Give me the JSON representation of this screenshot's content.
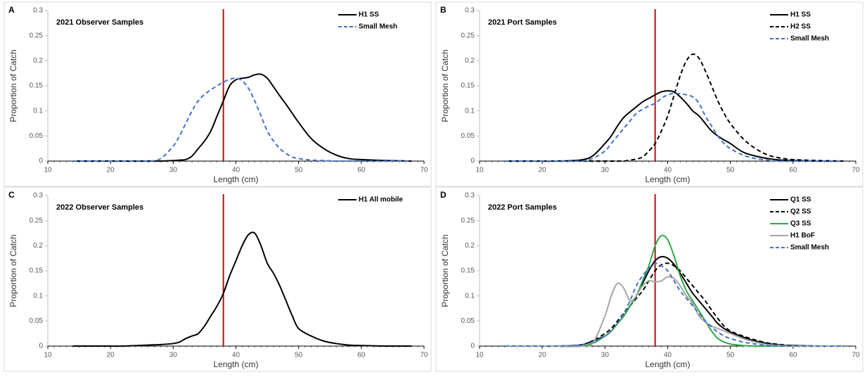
{
  "chart_data": [
    {
      "type": "line",
      "panel": "A",
      "title": "2021 Observer Samples",
      "xlabel": "Length (cm)",
      "ylabel": "Proportion of Catch",
      "x": [
        14,
        18,
        22,
        26,
        28,
        30,
        31,
        32,
        33,
        34,
        35,
        36,
        37,
        38,
        39,
        40,
        41,
        42,
        43,
        44,
        45,
        46,
        47,
        48,
        49,
        50,
        52,
        54,
        56,
        58,
        60,
        64,
        68
      ],
      "series": [
        {
          "name": "H1 SS",
          "color": "#000000",
          "dashed": false,
          "values": [
            0,
            0,
            0,
            0,
            0,
            0.001,
            0.002,
            0.003,
            0.01,
            0.025,
            0.04,
            0.06,
            0.09,
            0.12,
            0.15,
            0.162,
            0.165,
            0.167,
            0.172,
            0.173,
            0.165,
            0.148,
            0.13,
            0.113,
            0.095,
            0.077,
            0.045,
            0.025,
            0.012,
            0.005,
            0.003,
            0.001,
            0
          ]
        },
        {
          "name": "Small Mesh",
          "color": "#4472c4",
          "dashed": true,
          "values": [
            0,
            0,
            0,
            0,
            0.005,
            0.03,
            0.05,
            0.075,
            0.1,
            0.12,
            0.133,
            0.142,
            0.15,
            0.157,
            0.163,
            0.165,
            0.16,
            0.145,
            0.12,
            0.09,
            0.06,
            0.04,
            0.025,
            0.015,
            0.008,
            0.005,
            0.002,
            0.001,
            0,
            0,
            0,
            0,
            0
          ]
        }
      ],
      "xlim": [
        10,
        70
      ],
      "xticks": [
        10,
        20,
        30,
        40,
        50,
        60,
        70
      ],
      "ylim": [
        0,
        0.3
      ],
      "yticks": [
        0,
        0.05,
        0.1,
        0.15,
        0.2,
        0.25,
        0.3
      ],
      "ref_x": 38,
      "ref_color": "#e00000",
      "legend": "upper right"
    },
    {
      "type": "line",
      "panel": "B",
      "title": "2021 Port Samples",
      "xlabel": "Length (cm)",
      "ylabel": "Proportion of Catch",
      "x": [
        14,
        18,
        22,
        26,
        28,
        30,
        31,
        32,
        33,
        34,
        35,
        36,
        37,
        38,
        39,
        40,
        41,
        42,
        43,
        44,
        45,
        46,
        47,
        48,
        49,
        50,
        52,
        54,
        56,
        58,
        60,
        64,
        68
      ],
      "series": [
        {
          "name": "H1 SS",
          "color": "#000000",
          "dashed": false,
          "values": [
            0,
            0,
            0,
            0.002,
            0.01,
            0.035,
            0.05,
            0.07,
            0.087,
            0.098,
            0.108,
            0.118,
            0.125,
            0.132,
            0.138,
            0.14,
            0.138,
            0.128,
            0.115,
            0.1,
            0.09,
            0.075,
            0.06,
            0.05,
            0.042,
            0.035,
            0.018,
            0.01,
            0.005,
            0.002,
            0.001,
            0,
            0
          ]
        },
        {
          "name": "H2 SS",
          "color": "#000000",
          "dashed": true,
          "values": [
            0,
            0,
            0,
            0,
            0,
            0,
            0,
            0,
            0,
            0.002,
            0.004,
            0.008,
            0.02,
            0.035,
            0.06,
            0.09,
            0.13,
            0.17,
            0.2,
            0.213,
            0.205,
            0.18,
            0.15,
            0.12,
            0.095,
            0.075,
            0.045,
            0.025,
            0.012,
            0.006,
            0.003,
            0.001,
            0
          ]
        },
        {
          "name": "Small Mesh",
          "color": "#4472c4",
          "dashed": true,
          "values": [
            0,
            0,
            0,
            0,
            0.005,
            0.02,
            0.035,
            0.05,
            0.065,
            0.08,
            0.095,
            0.103,
            0.11,
            0.115,
            0.125,
            0.132,
            0.135,
            0.134,
            0.132,
            0.128,
            0.115,
            0.09,
            0.07,
            0.05,
            0.035,
            0.025,
            0.012,
            0.005,
            0.002,
            0,
            0,
            0,
            0
          ]
        }
      ],
      "xlim": [
        10,
        70
      ],
      "xticks": [
        10,
        20,
        30,
        40,
        50,
        60,
        70
      ],
      "ylim": [
        0,
        0.3
      ],
      "yticks": [
        0,
        0.05,
        0.1,
        0.15,
        0.2,
        0.25,
        0.3
      ],
      "ref_x": 38,
      "ref_color": "#e00000",
      "legend": "upper right"
    },
    {
      "type": "line",
      "panel": "C",
      "title": "2022 Observer Samples",
      "xlabel": "Length (cm)",
      "ylabel": "Proportion of Catch",
      "x": [
        14,
        18,
        22,
        26,
        28,
        30,
        31,
        32,
        33,
        34,
        35,
        36,
        37,
        38,
        39,
        40,
        41,
        42,
        43,
        44,
        45,
        46,
        47,
        48,
        49,
        50,
        52,
        54,
        56,
        58,
        60,
        64,
        68
      ],
      "series": [
        {
          "name": "H1 All mobile",
          "color": "#000000",
          "dashed": false,
          "values": [
            0,
            0,
            0,
            0.002,
            0.003,
            0.005,
            0.008,
            0.015,
            0.02,
            0.025,
            0.04,
            0.06,
            0.08,
            0.105,
            0.14,
            0.17,
            0.2,
            0.222,
            0.225,
            0.2,
            0.165,
            0.145,
            0.12,
            0.09,
            0.06,
            0.035,
            0.02,
            0.01,
            0.005,
            0.002,
            0.001,
            0,
            0
          ]
        }
      ],
      "xlim": [
        10,
        70
      ],
      "xticks": [
        10,
        20,
        30,
        40,
        50,
        60,
        70
      ],
      "ylim": [
        0,
        0.3
      ],
      "yticks": [
        0,
        0.05,
        0.1,
        0.15,
        0.2,
        0.25,
        0.3
      ],
      "ref_x": 38,
      "ref_color": "#e00000",
      "legend": "upper right"
    },
    {
      "type": "line",
      "panel": "D",
      "title": "2022 Port Samples",
      "xlabel": "Length (cm)",
      "ylabel": "Proportion of Catch",
      "x": [
        14,
        18,
        22,
        26,
        28,
        30,
        31,
        32,
        33,
        34,
        35,
        36,
        37,
        38,
        39,
        40,
        41,
        42,
        43,
        44,
        45,
        46,
        47,
        48,
        49,
        50,
        52,
        54,
        56,
        58,
        60,
        64,
        68
      ],
      "series": [
        {
          "name": "Q1 SS",
          "color": "#000000",
          "dashed": false,
          "values": [
            0,
            0,
            0,
            0.002,
            0.01,
            0.02,
            0.03,
            0.045,
            0.06,
            0.08,
            0.1,
            0.125,
            0.15,
            0.17,
            0.178,
            0.175,
            0.163,
            0.145,
            0.125,
            0.105,
            0.09,
            0.075,
            0.06,
            0.045,
            0.035,
            0.028,
            0.018,
            0.01,
            0.005,
            0.002,
            0.001,
            0,
            0
          ]
        },
        {
          "name": "Q2 SS",
          "color": "#000000",
          "dashed": true,
          "values": [
            0,
            0,
            0,
            0,
            0.01,
            0.025,
            0.035,
            0.05,
            0.065,
            0.08,
            0.095,
            0.11,
            0.13,
            0.15,
            0.162,
            0.165,
            0.16,
            0.15,
            0.135,
            0.12,
            0.105,
            0.09,
            0.072,
            0.055,
            0.04,
            0.03,
            0.02,
            0.012,
            0.006,
            0.003,
            0.001,
            0,
            0
          ]
        },
        {
          "name": "Q3 SS",
          "color": "#2eaa4a",
          "dashed": false,
          "values": [
            0,
            0,
            0,
            0,
            0.005,
            0.02,
            0.03,
            0.045,
            0.06,
            0.08,
            0.1,
            0.13,
            0.16,
            0.2,
            0.22,
            0.212,
            0.18,
            0.14,
            0.11,
            0.09,
            0.07,
            0.05,
            0.03,
            0.015,
            0.008,
            0.004,
            0.001,
            0,
            0,
            0,
            0,
            0,
            0
          ]
        },
        {
          "name": "H1 BoF",
          "color": "#a6a6a6",
          "dashed": false,
          "values": [
            0,
            0,
            0,
            0,
            0.005,
            0.06,
            0.1,
            0.125,
            0.115,
            0.09,
            0.1,
            0.12,
            0.13,
            0.128,
            0.13,
            0.138,
            0.135,
            0.12,
            0.1,
            0.085,
            0.06,
            0.048,
            0.04,
            0.035,
            0.03,
            0.025,
            0.015,
            0.008,
            0.003,
            0.001,
            0,
            0,
            0
          ]
        },
        {
          "name": "Small Mesh",
          "color": "#4472c4",
          "dashed": true,
          "values": [
            0,
            0,
            0,
            0.002,
            0.008,
            0.02,
            0.03,
            0.045,
            0.065,
            0.09,
            0.12,
            0.14,
            0.155,
            0.165,
            0.16,
            0.15,
            0.13,
            0.11,
            0.095,
            0.08,
            0.065,
            0.05,
            0.038,
            0.028,
            0.02,
            0.015,
            0.008,
            0.004,
            0.001,
            0,
            0,
            0,
            0
          ]
        }
      ],
      "xlim": [
        10,
        70
      ],
      "xticks": [
        10,
        20,
        30,
        40,
        50,
        60,
        70
      ],
      "ylim": [
        0,
        0.3
      ],
      "yticks": [
        0,
        0.05,
        0.1,
        0.15,
        0.2,
        0.25,
        0.3
      ],
      "ref_x": 38,
      "ref_color": "#e00000",
      "legend": "upper right"
    }
  ]
}
